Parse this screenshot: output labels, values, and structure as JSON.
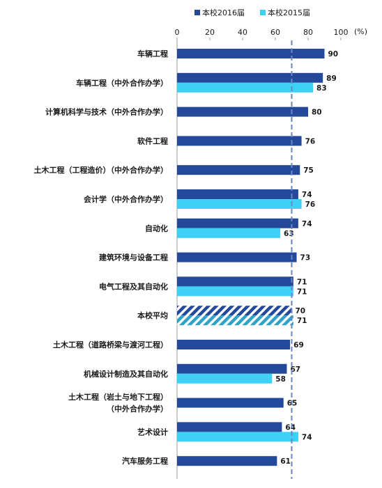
{
  "chart_data": {
    "type": "bar",
    "orientation": "horizontal",
    "unit": "(%)",
    "xlim": [
      0,
      100
    ],
    "ticks": [
      0,
      20,
      40,
      60,
      80,
      100
    ],
    "reference_line": 70,
    "legend_position": "top-right",
    "series": [
      {
        "name": "本校2016届",
        "color": "#24499b"
      },
      {
        "name": "本校2015届",
        "color": "#3fd0f5"
      }
    ],
    "categories": [
      {
        "label": [
          "车辆工程"
        ],
        "v2016": 90,
        "v2015": null
      },
      {
        "label": [
          "车辆工程（中外合作办学）"
        ],
        "v2016": 89,
        "v2015": 83
      },
      {
        "label": [
          "计算机科学与技术（中外合作办学）"
        ],
        "v2016": 80,
        "v2015": null
      },
      {
        "label": [
          "软件工程"
        ],
        "v2016": 76,
        "v2015": null
      },
      {
        "label": [
          "土木工程（工程造价）（中外合作办学）"
        ],
        "v2016": 75,
        "v2015": null
      },
      {
        "label": [
          "会计学（中外合作办学）"
        ],
        "v2016": 74,
        "v2015": 76
      },
      {
        "label": [
          "自动化"
        ],
        "v2016": 74,
        "v2015": 63
      },
      {
        "label": [
          "建筑环境与设备工程"
        ],
        "v2016": 73,
        "v2015": null
      },
      {
        "label": [
          "电气工程及其自动化"
        ],
        "v2016": 71,
        "v2015": 71
      },
      {
        "label": [
          "本校平均"
        ],
        "v2016": 70,
        "v2015": 71,
        "hatched": true
      },
      {
        "label": [
          "土木工程（道路桥梁与渡河工程）"
        ],
        "v2016": 69,
        "v2015": null
      },
      {
        "label": [
          "机械设计制造及其自动化"
        ],
        "v2016": 67,
        "v2015": 58
      },
      {
        "label": [
          "土木工程（岩土与地下工程）",
          "（中外合作办学）"
        ],
        "v2016": 65,
        "v2015": null
      },
      {
        "label": [
          "艺术设计"
        ],
        "v2016": 64,
        "v2015": 74
      },
      {
        "label": [
          "汽车服务工程"
        ],
        "v2016": 61,
        "v2015": null
      }
    ]
  }
}
